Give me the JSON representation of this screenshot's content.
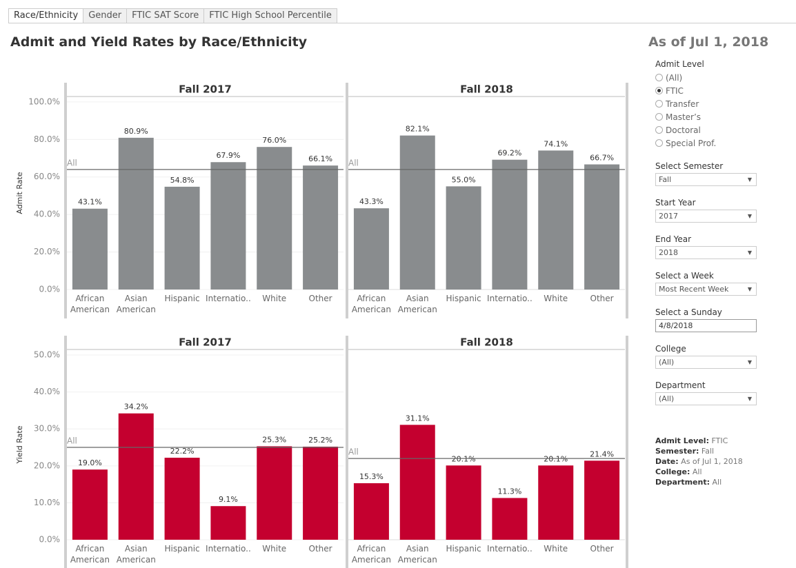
{
  "tabs": [
    "Race/Ethnicity",
    "Gender",
    "FTIC SAT Score",
    "FTIC High School Percentile"
  ],
  "active_tab": 0,
  "title": "Admit and Yield Rates by Race/Ethnicity",
  "as_of": "As of Jul 1, 2018",
  "filters": {
    "admit_level": {
      "label": "Admit Level",
      "options": [
        "(All)",
        "FTIC",
        "Transfer",
        "Master’s",
        "Doctoral",
        "Special Prof."
      ],
      "selected": 1
    },
    "dropdowns": [
      {
        "label": "Select Semester",
        "value": "Fall"
      },
      {
        "label": "Start Year",
        "value": "2017"
      },
      {
        "label": "End Year",
        "value": "2018"
      },
      {
        "label": "Select a Week",
        "value": "Most Recent Week"
      },
      {
        "label": "Select a Sunday",
        "value": "4/8/2018",
        "input": true
      },
      {
        "label": "College",
        "value": "(All)"
      },
      {
        "label": "Department",
        "value": "(All)"
      }
    ]
  },
  "summary": [
    {
      "label": "Admit Level:",
      "value": "FTIC"
    },
    {
      "label": "Semester:",
      "value": "Fall"
    },
    {
      "label": "Date:",
      "value": "As of Jul 1, 2018"
    },
    {
      "label": "College:",
      "value": "All"
    },
    {
      "label": "Department:",
      "value": "All"
    }
  ],
  "chart_data": [
    {
      "type": "bar",
      "title": "Fall 2017",
      "ylabel": "Admit Rate",
      "color": "#898c8e",
      "categories": [
        "African American",
        "Asian American",
        "Hispanic",
        "Internatio..",
        "White",
        "Other"
      ],
      "values": [
        43.1,
        80.9,
        54.8,
        67.9,
        76.0,
        66.1
      ],
      "value_labels": [
        "43.1%",
        "80.9%",
        "54.8%",
        "67.9%",
        "76.0%",
        "66.1%"
      ],
      "ylim": [
        0,
        102.9
      ],
      "yticks": [
        {
          "value": 0,
          "label": "0.0%"
        },
        {
          "value": 20,
          "label": "20.0%"
        },
        {
          "value": 40,
          "label": "40.0%"
        },
        {
          "value": 60,
          "label": "60.0%"
        },
        {
          "value": 80,
          "label": "80.0%"
        },
        {
          "value": 100,
          "label": "100.0%"
        }
      ],
      "reference": {
        "label": "All",
        "value": 64.0
      }
    },
    {
      "type": "bar",
      "title": "Fall 2018",
      "color": "#898c8e",
      "categories": [
        "African American",
        "Asian American",
        "Hispanic",
        "Internatio..",
        "White",
        "Other"
      ],
      "values": [
        43.3,
        82.1,
        55.0,
        69.2,
        74.1,
        66.7
      ],
      "value_labels": [
        "43.3%",
        "82.1%",
        "55.0%",
        "69.2%",
        "74.1%",
        "66.7%"
      ],
      "ylim": [
        0,
        102.9
      ],
      "reference": {
        "label": "All",
        "value": 64.0
      }
    },
    {
      "type": "bar",
      "title": "Fall 2017",
      "ylabel": "Yield Rate",
      "color": "#c4002f",
      "categories": [
        "African American",
        "Asian American",
        "Hispanic",
        "Internatio..",
        "White",
        "Other"
      ],
      "values": [
        19.0,
        34.2,
        22.2,
        9.1,
        25.3,
        25.2
      ],
      "value_labels": [
        "19.0%",
        "34.2%",
        "22.2%",
        "9.1%",
        "25.3%",
        "25.2%"
      ],
      "ylim": [
        0,
        51.5
      ],
      "yticks": [
        {
          "value": 0,
          "label": "0.0%"
        },
        {
          "value": 10,
          "label": "10.0%"
        },
        {
          "value": 20,
          "label": "20.0%"
        },
        {
          "value": 30,
          "label": "30.0%"
        },
        {
          "value": 40,
          "label": "40.0%"
        },
        {
          "value": 50,
          "label": "50.0%"
        }
      ],
      "reference": {
        "label": "All",
        "value": 25.0
      }
    },
    {
      "type": "bar",
      "title": "Fall 2018",
      "color": "#c4002f",
      "categories": [
        "African American",
        "Asian American",
        "Hispanic",
        "Internatio..",
        "White",
        "Other"
      ],
      "values": [
        15.3,
        31.1,
        20.1,
        11.3,
        20.1,
        21.4
      ],
      "value_labels": [
        "15.3%",
        "31.1%",
        "20.1%",
        "11.3%",
        "20.1%",
        "21.4%"
      ],
      "ylim": [
        0,
        51.5
      ],
      "reference": {
        "label": "All",
        "value": 22.0
      }
    }
  ]
}
